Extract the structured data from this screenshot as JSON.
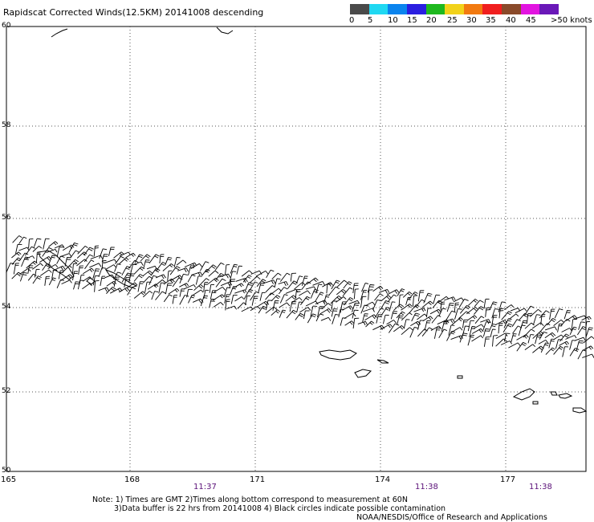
{
  "title": "Rapidscat Corrected Winds(12.5KM) 20141008 descending",
  "colorbar": {
    "labels": [
      "0",
      "5",
      "10",
      "15",
      "20",
      "25",
      "30",
      "35",
      "40",
      "45",
      ">50 knots"
    ],
    "colors": [
      "#4a4a4a",
      "#1fd8f2",
      "#0a84ee",
      "#2a1ee0",
      "#1eb81e",
      "#f2d21a",
      "#f27a10",
      "#f01e1e",
      "#8a4a2a",
      "#e214e0",
      "#6a18b8"
    ]
  },
  "map": {
    "lat_labels": [
      "60",
      "58",
      "56",
      "54",
      "52",
      "50"
    ],
    "lon_labels": [
      "165",
      "168",
      "171",
      "174",
      "177"
    ],
    "time_labels": [
      "11:37",
      "11:38",
      "11:38"
    ],
    "wind_color": "#000000",
    "land_outline_color": "#000000",
    "grid_style": "dotted"
  },
  "notes": {
    "line1": "Note: 1) Times are GMT 2)Times along bottom correspond to measurement at 60N",
    "line2": "3)Data buffer is 22 hrs from 20141008 4) Black circles indicate possible contamination",
    "line3": "NOAA/NESDIS/Office of Research and Applications"
  }
}
